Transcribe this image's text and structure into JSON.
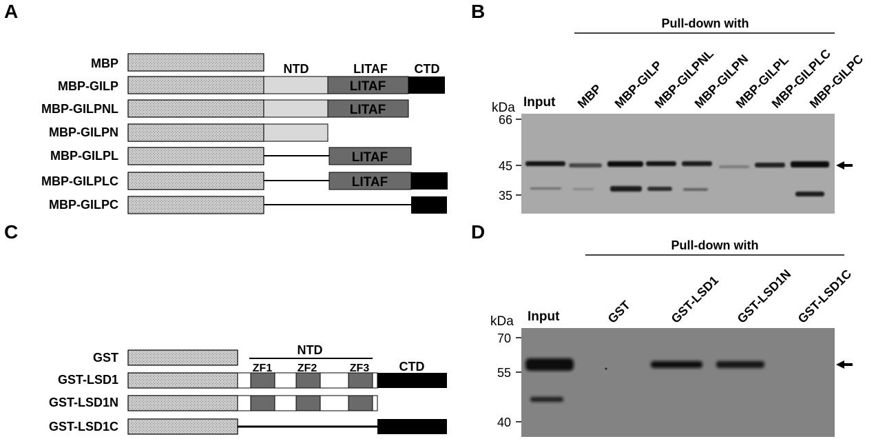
{
  "panels": {
    "A": {
      "letter": "A",
      "domain_labels": {
        "ntd": "NTD",
        "litaf": "LITAF",
        "ctd": "CTD"
      },
      "box_text": "LITAF",
      "constructs": [
        "MBP",
        "MBP-GILP",
        "MBP-GILPNL",
        "MBP-GILPN",
        "MBP-GILPL",
        "MBP-GILPLC",
        "MBP-GILPC"
      ]
    },
    "B": {
      "letter": "B",
      "header": "Pull-down with",
      "input_label": "Input",
      "kda_label": "kDa",
      "lanes": [
        "MBP",
        "MBP-GILP",
        "MBP-GILPNL",
        "MBP-GILPN",
        "MBP-GILPL",
        "MBP-GILPLC",
        "MBP-GILPC"
      ],
      "markers": [
        "66",
        "45",
        "35"
      ]
    },
    "C": {
      "letter": "C",
      "ntd_label": "NTD",
      "ctd_label": "CTD",
      "zf_labels": [
        "ZF1",
        "ZF2",
        "ZF3"
      ],
      "constructs": [
        "GST",
        "GST-LSD1",
        "GST-LSD1N",
        "GST-LSD1C"
      ]
    },
    "D": {
      "letter": "D",
      "header": "Pull-down with",
      "input_label": "Input",
      "kda_label": "kDa",
      "lanes": [
        "GST",
        "GST-LSD1",
        "GST-LSD1N",
        "GST-LSD1C"
      ],
      "markers": [
        "70",
        "55",
        "40"
      ]
    }
  },
  "colors": {
    "tag_fill": "#d2d2d2",
    "ntd_fill": "#d9d9d9",
    "litaf_fill": "#6a6a6a",
    "ctd_fill": "#000000",
    "zf_fill": "#6a6a6a",
    "blot_bg": "#a9a9a9",
    "blot_bg_d": "#838383"
  }
}
